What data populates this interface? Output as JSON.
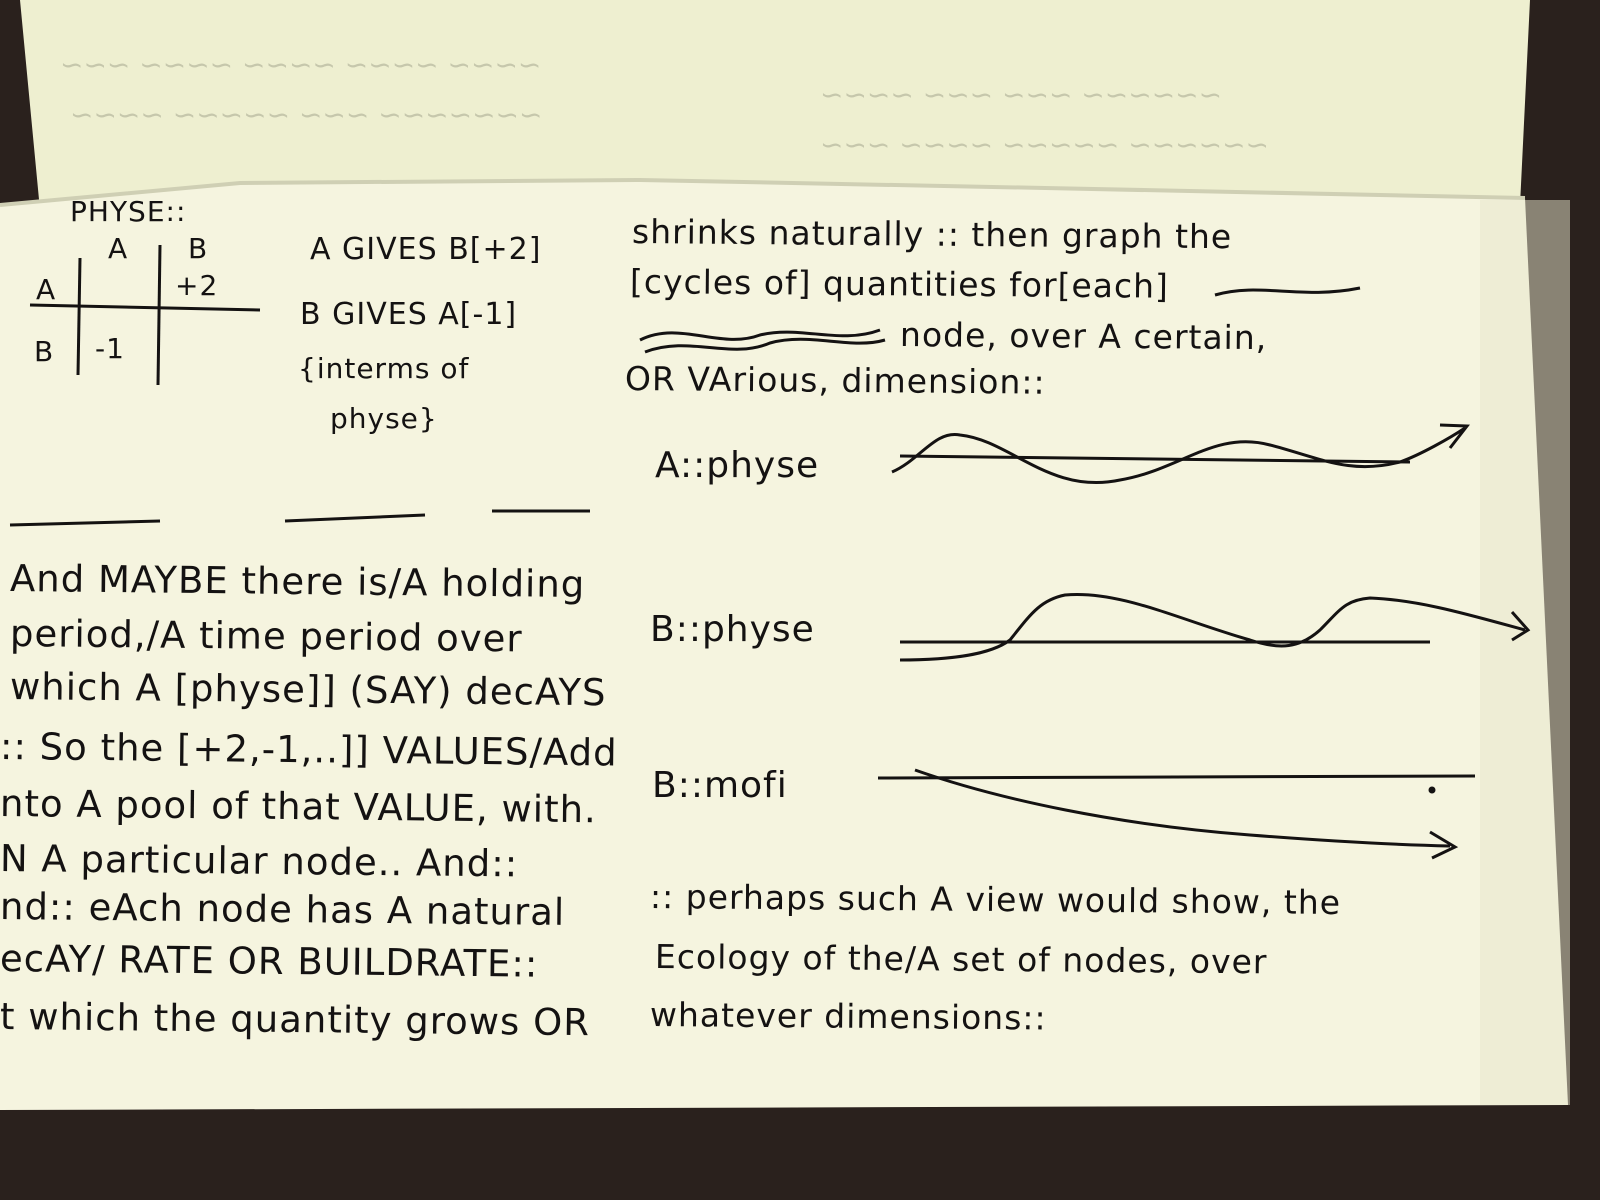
{
  "colors": {
    "paper": "#f5f4df",
    "upper_page": "#eeefd0",
    "ink": "#141212",
    "background": "#2a211d"
  },
  "table": {
    "title": "PHYSE::",
    "col_a": "A",
    "col_b": "B",
    "row_a": "A",
    "row_b": "B",
    "cell_ab": "+2",
    "cell_ba": "-1"
  },
  "notes": {
    "a_gives": "A GIVES B[+2]",
    "b_gives": "B GIVES A[-1]",
    "in_terms_1": "{interms of",
    "in_terms_2": "physe}"
  },
  "left_text": [
    "And MAYBE there is/A holding",
    "period,/A time period over",
    "which A [physe]] (SAY) decAYS",
    ":: So the [+2,-1,..]] VALUES/Add",
    "nto A pool of that VALUE, with.",
    "N A particular node.. And::",
    "nd:: eAch node has A natural",
    "ecAY/ RATE OR BUILDRATE::",
    "t which the quantity grows OR"
  ],
  "right_text": [
    "shrinks naturally :: then graph the",
    "[cycles of] quantities for[each]",
    "node, over A certain,",
    "OR VArious, dimension::"
  ],
  "graphs": [
    {
      "label": "A::physe"
    },
    {
      "label": "B::physe"
    },
    {
      "label": "B::mofi"
    }
  ],
  "closing_text": [
    ":: perhaps such A view would show, the",
    "Ecology of the/A set of nodes, over",
    "whatever dimensions::"
  ]
}
